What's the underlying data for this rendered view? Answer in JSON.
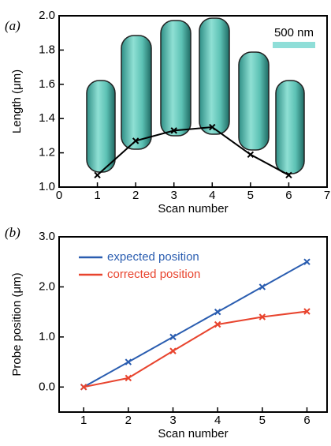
{
  "chart_data": [
    {
      "type": "line",
      "panel_label": "(a)",
      "xlabel": "Scan number",
      "ylabel": "Length (μm)",
      "annotation": "500 nm",
      "x": [
        1,
        2,
        3,
        4,
        5,
        6
      ],
      "series": [
        {
          "color": "#000000",
          "values": [
            1.07,
            1.27,
            1.33,
            1.35,
            1.19,
            1.07
          ]
        }
      ],
      "xlim": [
        0,
        7
      ],
      "xticks": [
        0,
        1,
        2,
        3,
        4,
        5,
        6,
        7
      ],
      "ylim": [
        1.0,
        2.0
      ],
      "yticks": [
        {
          "value": 1.0,
          "label": "1.0"
        },
        1.2,
        1.4,
        1.6,
        1.8,
        {
          "value": 2.0,
          "label": "2.0"
        }
      ]
    },
    {
      "type": "line",
      "panel_label": "(b)",
      "xlabel": "Scan number",
      "ylabel": "Probe position (μm)",
      "legend": "upper left",
      "x": [
        1,
        2,
        3,
        4,
        5,
        6
      ],
      "series": [
        {
          "name": "expected position",
          "color": "#2a5db0",
          "values": [
            0,
            0.5,
            1.0,
            1.5,
            2.0,
            2.5
          ]
        },
        {
          "name": "corrected position",
          "color": "#e8442e",
          "values": [
            0,
            0.18,
            0.72,
            1.25,
            1.4,
            1.51
          ]
        }
      ],
      "xlim": [
        0.45,
        6.45
      ],
      "xticks": [
        1,
        2,
        3,
        4,
        5,
        6
      ],
      "ylim": [
        -0.5,
        3.0
      ],
      "yticks": [
        {
          "value": 0.0,
          "label": "0.0"
        },
        {
          "value": 1.0,
          "label": "1.0"
        },
        {
          "value": 2.0,
          "label": "2.0"
        },
        {
          "value": 3.0,
          "label": "3.0"
        }
      ]
    }
  ]
}
